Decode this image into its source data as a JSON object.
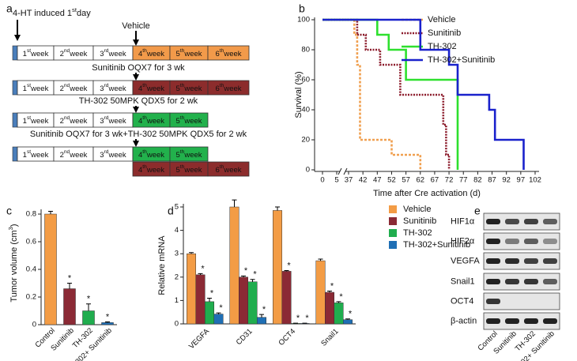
{
  "panel_labels": [
    "a",
    "b",
    "c",
    "d",
    "e"
  ],
  "timeline": {
    "start_label": {
      "pre": "4-HT induced 1",
      "sup": "st",
      "post": "day"
    },
    "week_word": "week",
    "weeks": [
      {
        "n": "1",
        "sup": "st"
      },
      {
        "n": "2",
        "sup": "nd"
      },
      {
        "n": "3",
        "sup": "rd"
      },
      {
        "n": "4",
        "sup": "th"
      },
      {
        "n": "5",
        "sup": "th"
      },
      {
        "n": "6",
        "sup": "th"
      }
    ],
    "rows": [
      {
        "label": "Vehicle",
        "tracks": [
          [
            "#ffffff",
            "#ffffff",
            "#ffffff",
            "#f29a4a",
            "#f29a4a",
            "#f29a4a"
          ]
        ]
      },
      {
        "label": "Sunitinib OQX7 for 3 wk",
        "tracks": [
          [
            "#ffffff",
            "#ffffff",
            "#ffffff",
            "#8c2c2c",
            "#8c2c2c",
            "#8c2c2c"
          ]
        ]
      },
      {
        "label": "TH-302 50MPK QDX5 for 2 wk",
        "tracks": [
          [
            "#ffffff",
            "#ffffff",
            "#ffffff",
            "#22b14c",
            "#22b14c"
          ]
        ]
      },
      {
        "label": "Sunitinib OQX7 for 3 wk+TH-302 50MPK QDX5 for 2 wk",
        "tracks": [
          [
            "#ffffff",
            "#ffffff",
            "#ffffff",
            "#22b14c",
            "#22b14c"
          ],
          [
            null,
            null,
            null,
            "#8c2c2c",
            "#8c2c2c",
            "#8c2c2c"
          ]
        ]
      }
    ]
  },
  "chart_data": [
    {
      "type": "step",
      "xlabel": "Time after Cre activation (d)",
      "ylabel": "Survival (%)",
      "xlim": [
        0,
        102
      ],
      "x_break": [
        5,
        37
      ],
      "xticks": [
        0,
        5,
        37,
        42,
        47,
        52,
        57,
        62,
        67,
        72,
        77,
        82,
        87,
        92,
        97,
        102
      ],
      "ylim": [
        0,
        100
      ],
      "yticks": [
        0,
        20,
        40,
        60,
        80,
        100
      ],
      "legend": "top-right",
      "series": [
        {
          "name": "Vehicle",
          "color": "#f0a050",
          "dash": "3,2",
          "x": [
            0,
            39,
            39,
            40,
            40,
            41,
            41,
            52,
            52,
            62,
            62
          ],
          "values": [
            100,
            100,
            90,
            90,
            70,
            70,
            20,
            20,
            10,
            10,
            0
          ]
        },
        {
          "name": "Sunitinib",
          "color": "#8b1a2a",
          "dash": "2,1.5",
          "x": [
            0,
            40,
            40,
            43,
            43,
            48,
            48,
            55,
            55,
            70,
            70,
            71,
            71,
            72,
            72
          ],
          "values": [
            100,
            100,
            90,
            90,
            80,
            80,
            70,
            70,
            50,
            50,
            30,
            30,
            10,
            10,
            0
          ]
        },
        {
          "name": "TH-302",
          "color": "#2ee02e",
          "dash": null,
          "x": [
            0,
            47,
            47,
            51,
            51,
            57,
            57,
            75,
            75
          ],
          "values": [
            100,
            100,
            90,
            90,
            80,
            80,
            60,
            60,
            0
          ]
        },
        {
          "name": "TH-302+Sunitinib",
          "color": "#1a22cc",
          "dash": null,
          "x": [
            0,
            62,
            62,
            72,
            72,
            75,
            75,
            86,
            86,
            88,
            88,
            98,
            98
          ],
          "values": [
            100,
            100,
            80,
            80,
            70,
            70,
            50,
            50,
            40,
            40,
            20,
            20,
            0
          ]
        }
      ]
    },
    {
      "type": "bar",
      "ylabel": {
        "pre": "Tumor volume (cm",
        "sup": "3",
        "post": ")"
      },
      "categories": [
        "Control",
        "Sunitinib",
        "TH-302",
        "TH-302+ Sunitinib"
      ],
      "values": [
        0.8,
        0.26,
        0.1,
        0.015
      ],
      "errors": [
        0.02,
        0.04,
        0.05,
        0.005
      ],
      "colors": [
        "#f39c45",
        "#8b2a35",
        "#20ad4e",
        "#1f6fb5"
      ],
      "star_label": "*",
      "significant": [
        false,
        true,
        true,
        true
      ],
      "ylim": [
        0,
        0.8
      ],
      "yticks": [
        0,
        0.2,
        0.4,
        0.6,
        0.8
      ]
    },
    {
      "type": "grouped-bar",
      "ylabel": "Relative mRNA",
      "categories": [
        "VEGFA",
        "CD31",
        "OCT4",
        "Snail1"
      ],
      "star_label": "*",
      "legend": "top-right",
      "ylim": [
        0,
        5
      ],
      "yticks": [
        0,
        1,
        2,
        3,
        4,
        5
      ],
      "series": [
        {
          "name": "Vehicle",
          "color": "#f39c45",
          "values": [
            3.0,
            5.0,
            4.85,
            2.7
          ],
          "errors": [
            0.05,
            0.3,
            0.15,
            0.07
          ],
          "significant": [
            false,
            false,
            false,
            false
          ]
        },
        {
          "name": "Sunitinib",
          "color": "#8b2a35",
          "values": [
            2.1,
            2.0,
            2.25,
            1.35
          ],
          "errors": [
            0.05,
            0.05,
            0.03,
            0.05
          ],
          "significant": [
            true,
            true,
            true,
            true
          ]
        },
        {
          "name": "TH-302",
          "color": "#20ad4e",
          "values": [
            0.95,
            1.8,
            0.02,
            0.9
          ],
          "errors": [
            0.15,
            0.1,
            0.01,
            0.05
          ],
          "significant": [
            true,
            true,
            true,
            true
          ]
        },
        {
          "name": "TH-302+Sunitinib",
          "color": "#1f6fb5",
          "values": [
            0.42,
            0.28,
            0.02,
            0.18
          ],
          "errors": [
            0.05,
            0.12,
            0.01,
            0.03
          ],
          "significant": [
            true,
            true,
            true,
            true
          ]
        }
      ]
    }
  ],
  "blot": {
    "proteins": [
      "HIF1α",
      "HIF2α",
      "VEGFA",
      "Snail1",
      "OCT4",
      "β-actin"
    ],
    "lanes": [
      "Control",
      "Sunitinib",
      "TH-302",
      "TH-302+ Sunitinib"
    ]
  }
}
